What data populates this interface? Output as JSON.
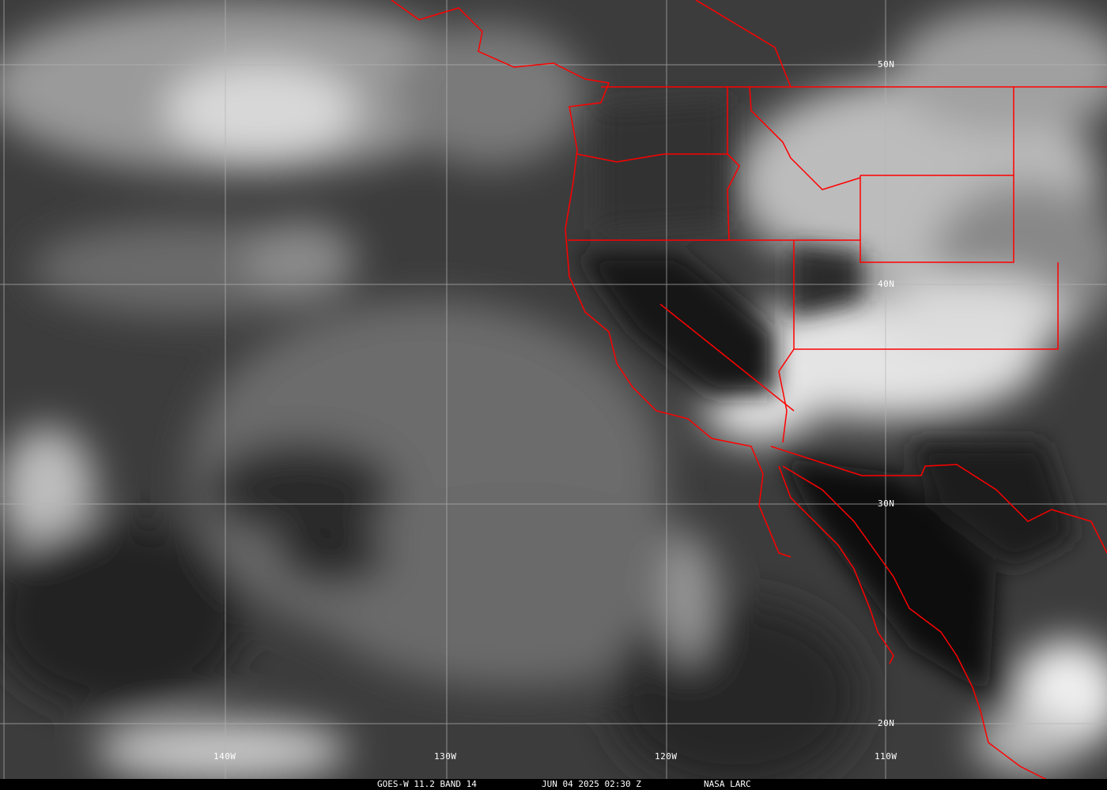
{
  "image": {
    "satellite": "GOES-W",
    "caption": {
      "product": "GOES-W 11.2 BAND 14",
      "datetime": "JUN 04 2025 02:30 Z",
      "source": "NASA LARC"
    },
    "latitude_labels": [
      "50N",
      "40N",
      "30N",
      "20N"
    ],
    "longitude_labels": [
      "140W",
      "130W",
      "120W",
      "110W"
    ],
    "colors": {
      "borders": "#ff0000",
      "grid": "#b4b4b4",
      "caption_bg": "#000000",
      "text": "#ffffff"
    }
  }
}
